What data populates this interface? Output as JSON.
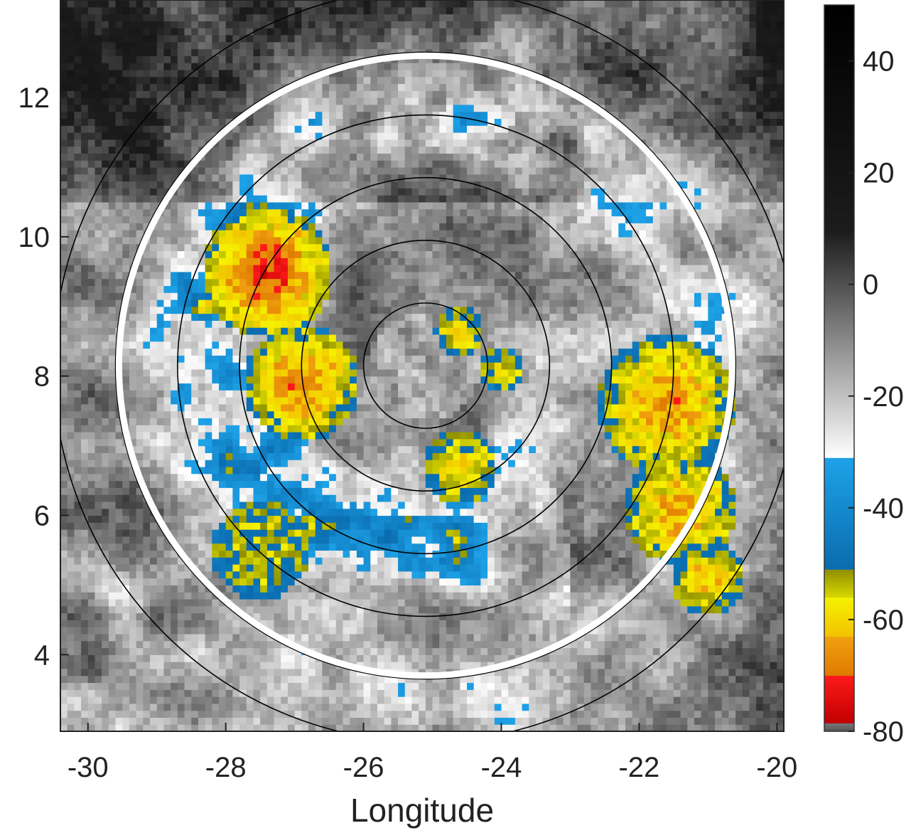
{
  "chart_data": {
    "type": "heatmap",
    "title": "",
    "xlabel": "Longitude",
    "ylabel": "",
    "xlim": [
      -30.4,
      -19.9
    ],
    "ylim": [
      2.9,
      13.4
    ],
    "x_ticks": [
      -30,
      -28,
      -26,
      -24,
      -22,
      -20
    ],
    "y_ticks": [
      4,
      6,
      8,
      10,
      12
    ],
    "center": {
      "lon": -25.1,
      "lat": 8.15
    },
    "range_rings_deg": [
      0.9,
      1.8,
      2.7,
      3.6,
      4.5,
      5.4
    ],
    "highlight_ring_deg": 4.45,
    "colorbar": {
      "range": [
        -80,
        50
      ],
      "ticks": [
        40,
        20,
        0,
        -20,
        -40,
        -60,
        -80
      ],
      "segments": [
        {
          "from": -80,
          "to": -78.5,
          "colors": [
            "#555555",
            "#777777"
          ]
        },
        {
          "from": -78.5,
          "to": -70,
          "colors": [
            "#c00000",
            "#ff1a1a"
          ]
        },
        {
          "from": -70,
          "to": -63,
          "colors": [
            "#e07a00",
            "#f0a010"
          ]
        },
        {
          "from": -63,
          "to": -56,
          "colors": [
            "#f2c200",
            "#f5f200"
          ]
        },
        {
          "from": -56,
          "to": -51,
          "colors": [
            "#d8d800",
            "#8f8f00"
          ]
        },
        {
          "from": -51,
          "to": -31,
          "colors": [
            "#0a6cae",
            "#1ea2e8"
          ]
        },
        {
          "from": -31,
          "to": 50,
          "colors": [
            "#ffffff",
            "#1c1c1c",
            "#000000"
          ]
        }
      ]
    },
    "cold_cloud_clusters": [
      {
        "lon": -27.4,
        "lat": 9.5,
        "radius_deg": 0.95,
        "peak": -74
      },
      {
        "lon": -26.9,
        "lat": 7.9,
        "radius_deg": 0.85,
        "peak": -68
      },
      {
        "lon": -24.6,
        "lat": 8.65,
        "radius_deg": 0.35,
        "peak": -60
      },
      {
        "lon": -24.0,
        "lat": 8.1,
        "radius_deg": 0.3,
        "peak": -60
      },
      {
        "lon": -24.6,
        "lat": 6.7,
        "radius_deg": 0.55,
        "peak": -60
      },
      {
        "lon": -21.6,
        "lat": 7.6,
        "radius_deg": 1.0,
        "peak": -67
      },
      {
        "lon": -21.4,
        "lat": 6.1,
        "radius_deg": 0.8,
        "peak": -66
      },
      {
        "lon": -21.0,
        "lat": 5.1,
        "radius_deg": 0.55,
        "peak": -62
      },
      {
        "lon": -27.5,
        "lat": 5.5,
        "radius_deg": 0.7,
        "peak": -55
      }
    ]
  }
}
